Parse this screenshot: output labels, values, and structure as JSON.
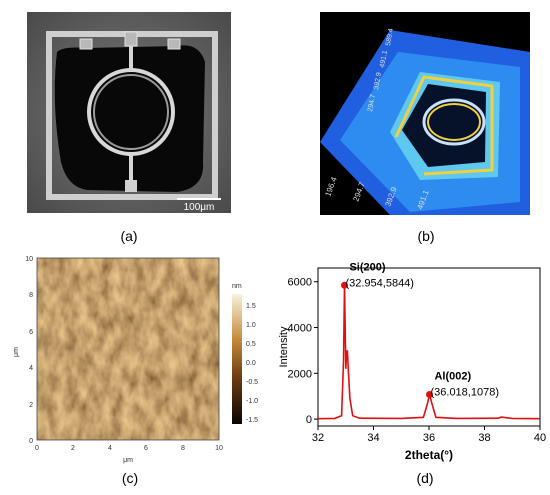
{
  "figure": {
    "captions": {
      "a": "(a)",
      "b": "(b)",
      "c": "(c)",
      "d": "(d)"
    }
  },
  "panel_a": {
    "scale_bar": "100μm"
  },
  "panel_b": {
    "axis_ticks": [
      "196.4",
      "294.7",
      "392.9",
      "491.1"
    ],
    "side_ticks": [
      "294.7",
      "392.9",
      "491.1",
      "589.4"
    ]
  },
  "panel_c": {
    "y_ticks": [
      "10",
      "8",
      "6",
      "4",
      "2",
      "0"
    ],
    "x_ticks": [
      "0",
      "2",
      "4",
      "6",
      "8",
      "10"
    ],
    "xlabel": "μm",
    "ylabel": "μm",
    "colorbar_unit": "nm",
    "colorbar_ticks": [
      "1.5",
      "1.0",
      "0.5",
      "0.0",
      "-0.5",
      "-1.0",
      "-1.5"
    ]
  },
  "chart_data": {
    "type": "line",
    "xlabel": "2theta(°)",
    "ylabel": "Intensity",
    "xlim": [
      32,
      40
    ],
    "ylim": [
      -300,
      6600
    ],
    "x_ticks": [
      "32",
      "34",
      "36",
      "38",
      "40"
    ],
    "y_ticks": [
      "0",
      "2000",
      "4000",
      "6000"
    ],
    "series_color": "#e01010",
    "series": [
      {
        "x": [
          32.0,
          32.6,
          32.85,
          32.92,
          32.954,
          32.98,
          33.0,
          33.03,
          33.06,
          33.1,
          33.15,
          33.25,
          33.5,
          35.0,
          35.8,
          35.95,
          36.018,
          36.1,
          36.25,
          37.0,
          38.5,
          38.6,
          39.0,
          40.0
        ],
        "y": [
          20,
          30,
          150,
          2500,
          5844,
          4000,
          2200,
          2900,
          3000,
          2000,
          900,
          150,
          40,
          30,
          80,
          700,
          1078,
          700,
          80,
          30,
          40,
          90,
          30,
          20
        ]
      }
    ],
    "annotations": [
      {
        "label": "Si(200)",
        "coords": "(32.954,5844)",
        "x": 32.954,
        "y": 5844
      },
      {
        "label": "Al(002)",
        "coords": "(36.018,1078)",
        "x": 36.018,
        "y": 1078
      }
    ]
  }
}
